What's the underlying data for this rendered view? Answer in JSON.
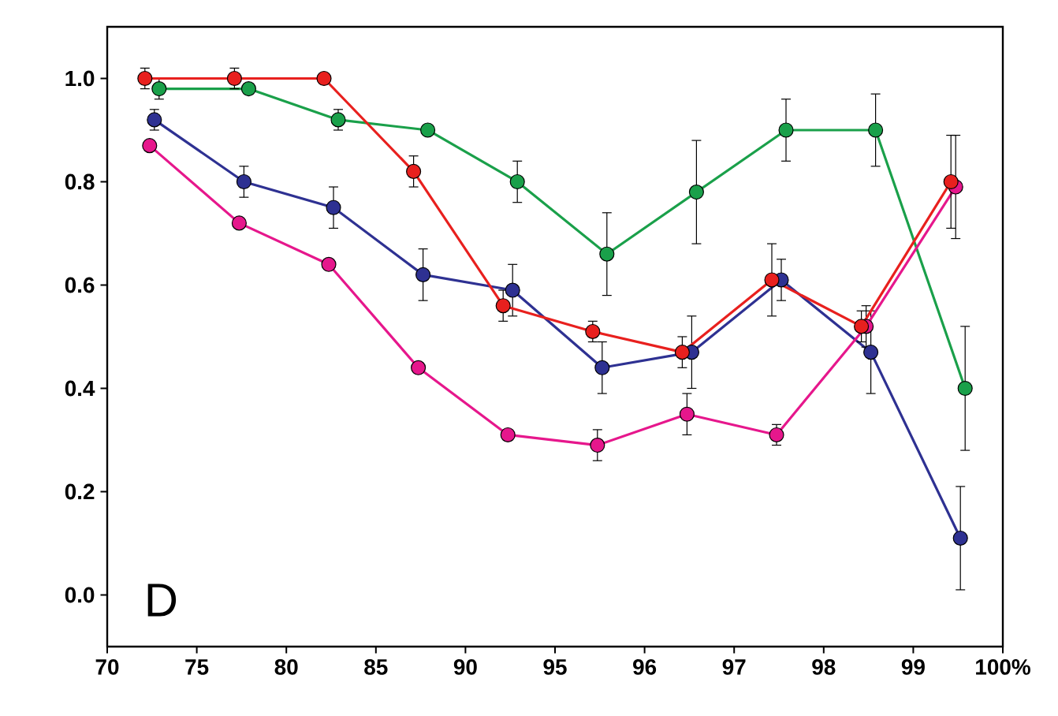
{
  "chart_data": {
    "type": "line",
    "marker": "circle",
    "line_style": "solid",
    "grid": false,
    "categories": [
      "70",
      null,
      "75",
      null,
      "80",
      null,
      "85",
      null,
      "90",
      null,
      "95",
      null,
      "96",
      null,
      "97",
      null,
      "98",
      null,
      "99",
      null,
      "100%"
    ],
    "ylim": [
      -0.1,
      1.1
    ],
    "yticks": [
      {
        "value": 0,
        "label": "0.0"
      },
      {
        "value": 0.2,
        "label": "0.2"
      },
      {
        "value": 0.4,
        "label": "0.4"
      },
      {
        "value": 0.6,
        "label": "0.6"
      },
      {
        "value": 0.8,
        "label": "0.8"
      },
      {
        "value": 1.0,
        "label": "1.0"
      }
    ],
    "annotations": [
      "D"
    ],
    "series": [
      {
        "color": "#1aa04a",
        "values": [
          null,
          0.98,
          null,
          0.98,
          null,
          0.92,
          null,
          0.9,
          null,
          0.8,
          null,
          0.66,
          null,
          0.78,
          null,
          0.9,
          null,
          0.9,
          null,
          0.4,
          null
        ],
        "errors": [
          null,
          0.02,
          null,
          0.01,
          null,
          0.02,
          null,
          0.01,
          null,
          0.04,
          null,
          0.08,
          null,
          0.1,
          null,
          0.06,
          null,
          0.07,
          null,
          0.12,
          null
        ]
      },
      {
        "color": "#2e3192",
        "values": [
          null,
          0.92,
          null,
          0.8,
          null,
          0.75,
          null,
          0.62,
          null,
          0.59,
          null,
          0.44,
          null,
          0.47,
          null,
          0.61,
          null,
          0.47,
          null,
          0.11,
          null
        ],
        "errors": [
          null,
          0.02,
          null,
          0.03,
          null,
          0.04,
          null,
          0.05,
          null,
          0.05,
          null,
          0.05,
          null,
          0.07,
          null,
          0.04,
          null,
          0.08,
          null,
          0.1,
          null
        ]
      },
      {
        "color": "#e6178c",
        "values": [
          null,
          0.87,
          null,
          0.72,
          null,
          0.64,
          null,
          0.44,
          null,
          0.31,
          null,
          0.29,
          null,
          0.35,
          null,
          0.31,
          null,
          0.52,
          null,
          0.79,
          null
        ],
        "errors": [
          null,
          0.01,
          null,
          0.01,
          null,
          0.01,
          null,
          0.01,
          null,
          0.01,
          null,
          0.03,
          null,
          0.04,
          null,
          0.02,
          null,
          0.04,
          null,
          0.1,
          null
        ]
      },
      {
        "color": "#e8201e",
        "values": [
          null,
          1.0,
          null,
          1.0,
          null,
          1.0,
          null,
          0.82,
          null,
          0.56,
          null,
          0.51,
          null,
          0.47,
          null,
          0.61,
          null,
          0.52,
          null,
          0.8,
          null
        ],
        "errors": [
          null,
          0.02,
          null,
          0.02,
          null,
          0.01,
          null,
          0.03,
          null,
          0.03,
          null,
          0.02,
          null,
          0.03,
          null,
          0.07,
          null,
          0.03,
          null,
          0.09,
          null
        ]
      }
    ]
  }
}
